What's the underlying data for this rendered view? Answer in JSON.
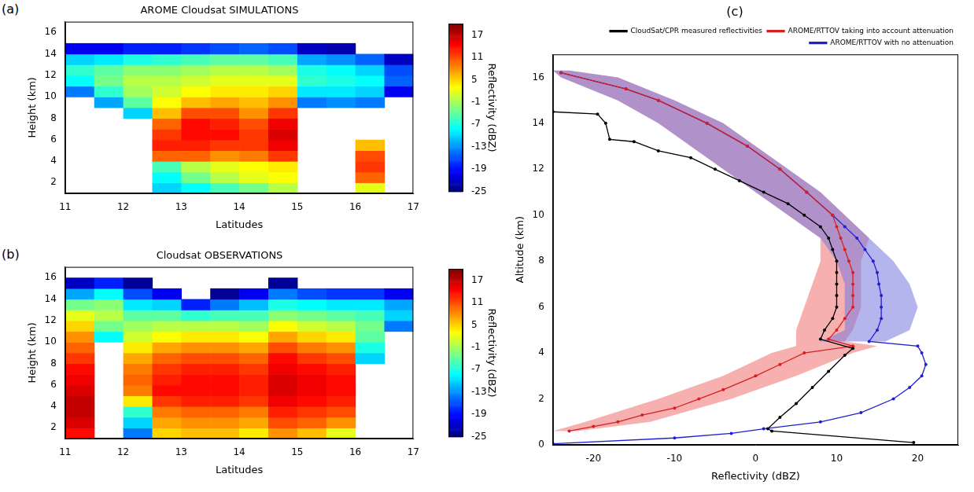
{
  "chart_data": [
    {
      "type": "heatmap",
      "panel": "(a)",
      "title": "AROME Cloudsat SIMULATIONS",
      "x_label": "Latitudes",
      "y_label": "Height (km)",
      "xlim": [
        11,
        17
      ],
      "xticks": [
        11,
        12,
        13,
        14,
        15,
        16,
        17
      ],
      "ylim": [
        1,
        17
      ],
      "yticks": [
        2,
        4,
        6,
        8,
        10,
        12,
        14,
        16
      ],
      "grid": false,
      "x_bins": [
        11,
        11.5,
        12,
        12.5,
        13,
        13.5,
        14,
        14.5,
        15,
        15.5,
        16,
        16.5,
        17
      ],
      "y_bins": [
        1,
        2,
        3,
        4,
        5,
        6,
        7,
        8,
        9,
        10,
        11,
        12,
        13,
        14,
        15,
        16
      ],
      "cells": [
        [
          null,
          null,
          null,
          null,
          null,
          null,
          null,
          null,
          null,
          -14,
          -8,
          -6,
          -10,
          -20,
          null
        ],
        [
          null,
          null,
          null,
          null,
          null,
          null,
          null,
          null,
          -12,
          -6,
          -3,
          -4,
          -9,
          -20,
          null
        ],
        [
          null,
          null,
          null,
          null,
          null,
          null,
          null,
          -10,
          -4,
          -1,
          0,
          -2,
          -7,
          -18,
          null
        ],
        [
          -10,
          -8,
          -5,
          10,
          13,
          12,
          10,
          6,
          3,
          1,
          0,
          -2,
          -6,
          -18,
          null
        ],
        [
          -8,
          -3,
          0,
          10,
          13,
          14,
          14,
          11,
          6,
          3,
          1,
          -1,
          -5,
          -17,
          null
        ],
        [
          -5,
          0,
          2,
          8,
          12,
          14,
          13,
          11,
          7,
          4,
          2,
          0,
          -4,
          -16,
          null
        ],
        [
          -3,
          2,
          3,
          9,
          12,
          12,
          11,
          8,
          6,
          4,
          2,
          0,
          -4,
          -15,
          null
        ],
        [
          0,
          3,
          4,
          12,
          15,
          16,
          15,
          12,
          8,
          5,
          2,
          -1,
          -5,
          -16,
          null
        ],
        [
          null,
          null,
          null,
          null,
          null,
          null,
          null,
          null,
          -14,
          -9,
          -6,
          -7,
          -12,
          -22,
          null
        ],
        [
          null,
          null,
          null,
          null,
          null,
          null,
          null,
          null,
          -13,
          -9,
          -7,
          -8,
          -13,
          -23,
          null
        ],
        [
          2,
          10,
          12,
          11,
          6,
          null,
          null,
          null,
          -14,
          -10,
          -8,
          -10,
          -15,
          null,
          null
        ],
        [
          null,
          null,
          null,
          null,
          null,
          null,
          null,
          null,
          null,
          -20,
          -15,
          -16,
          -22,
          null,
          null
        ]
      ],
      "colorbar": {
        "label": "Reflectivity (dBZ)",
        "lim": [
          -25,
          20
        ],
        "ticks": [
          17,
          11,
          5,
          -1,
          -7,
          -13,
          -19,
          -25
        ]
      }
    },
    {
      "type": "heatmap",
      "panel": "(b)",
      "title": "Cloudsat OBSERVATIONS",
      "x_label": "Latitudes",
      "y_label": "Height (km)",
      "xlim": [
        11,
        17
      ],
      "xticks": [
        11,
        12,
        13,
        14,
        15,
        16,
        17
      ],
      "ylim": [
        1,
        17
      ],
      "yticks": [
        2,
        4,
        6,
        8,
        10,
        12,
        14,
        16
      ],
      "grid": false,
      "x_bins": [
        11,
        11.5,
        12,
        12.5,
        13,
        13.5,
        14,
        14.5,
        15,
        15.5,
        16,
        16.5,
        17
      ],
      "y_bins": [
        1,
        2,
        3,
        4,
        5,
        6,
        7,
        8,
        9,
        10,
        11,
        12,
        13,
        14,
        15,
        16
      ],
      "cells": [
        [
          14,
          16,
          17,
          17,
          16,
          15,
          14,
          12,
          10,
          8,
          5,
          2,
          -3,
          -12,
          -22
        ],
        [
          null,
          null,
          null,
          null,
          null,
          null,
          null,
          null,
          null,
          -8,
          -3,
          0,
          -2,
          -8,
          -18
        ],
        [
          -14,
          -10,
          -6,
          4,
          9,
          10,
          9,
          7,
          4,
          1,
          -1,
          -4,
          -9,
          -16,
          -24
        ],
        [
          5,
          7,
          9,
          12,
          14,
          13,
          12,
          10,
          7,
          3,
          0,
          -4,
          -10,
          -20,
          null
        ],
        [
          6,
          8,
          10,
          13,
          14,
          14,
          13,
          11,
          8,
          4,
          0,
          -6,
          -18,
          null,
          null
        ],
        [
          6,
          8,
          10,
          13,
          14,
          14,
          13,
          11,
          8,
          4,
          0,
          -5,
          -14,
          -24,
          null
        ],
        [
          4,
          7,
          9,
          12,
          13,
          13,
          12,
          10,
          7,
          3,
          -1,
          -5,
          -11,
          -20,
          null
        ],
        [
          8,
          11,
          13,
          15,
          16,
          16,
          15,
          14,
          11,
          7,
          3,
          -2,
          -7,
          -14,
          -24
        ],
        [
          6,
          10,
          12,
          14,
          15,
          15,
          14,
          12,
          9,
          5,
          1,
          -3,
          -8,
          -16,
          null
        ],
        [
          2,
          8,
          11,
          13,
          14,
          14,
          13,
          11,
          8,
          4,
          0,
          -4,
          -9,
          -17,
          null
        ],
        [
          null,
          null,
          null,
          null,
          null,
          null,
          null,
          -10,
          -7,
          -4,
          -3,
          -5,
          -9,
          -17,
          null
        ],
        [
          null,
          null,
          null,
          null,
          null,
          null,
          null,
          null,
          null,
          null,
          -14,
          -10,
          -12,
          -20,
          null
        ]
      ],
      "colorbar": {
        "label": "Reflectivity (dBZ)",
        "lim": [
          -25,
          20
        ],
        "ticks": [
          17,
          11,
          5,
          -1,
          -7,
          -13,
          -19,
          -25
        ]
      }
    },
    {
      "type": "line",
      "panel": "(c)",
      "x_label": "Reflectivity (dBZ)",
      "y_label": "Altitude (km)",
      "xlim": [
        -25,
        25
      ],
      "xticks": [
        -20,
        -10,
        0,
        10,
        20
      ],
      "ylim": [
        0,
        17
      ],
      "yticks": [
        0,
        2,
        4,
        6,
        8,
        10,
        12,
        14,
        16
      ],
      "grid": false,
      "legend": "top right",
      "series": [
        {
          "name": "CloudSat/CPR measured reflectivities",
          "color": "#000000",
          "marker": "circle",
          "line_style": "solid",
          "x": [
            19.5,
            2,
            1.5,
            3,
            5,
            7,
            9,
            11,
            12,
            8,
            8.5,
            9.5,
            10,
            10,
            10,
            10,
            10,
            9.5,
            9,
            8,
            6,
            4,
            1,
            -2,
            -5,
            -8,
            -12,
            -15,
            -18,
            -18.5,
            -19.5,
            -25
          ],
          "y": [
            0.1,
            0.6,
            0.7,
            1.2,
            1.8,
            2.5,
            3.2,
            3.9,
            4.2,
            4.6,
            5,
            5.5,
            6,
            6.5,
            7,
            7.5,
            8,
            8.5,
            9,
            9.5,
            10,
            10.5,
            11,
            11.5,
            12,
            12.5,
            12.8,
            13.2,
            13.3,
            14,
            14.4,
            14.5
          ]
        },
        {
          "name": "AROME/RTTOV taking into account attenuation",
          "color": "#d62020",
          "marker": "circle",
          "line_style": "solid",
          "x": [
            -23,
            -20,
            -17,
            -14,
            -10,
            -7,
            -4,
            0,
            3,
            6,
            12,
            9,
            10,
            11,
            12,
            12,
            12,
            12,
            11.5,
            11,
            10.5,
            10,
            9.5,
            6.3,
            3,
            -1,
            -6,
            -12,
            -16,
            -24
          ],
          "y": [
            0.6,
            0.8,
            1.0,
            1.3,
            1.6,
            2.0,
            2.4,
            3.0,
            3.5,
            4.0,
            4.3,
            4.6,
            5.0,
            5.5,
            6.0,
            6.5,
            7.0,
            7.5,
            8.0,
            8.5,
            9.0,
            9.5,
            10,
            11,
            12,
            13,
            14,
            15,
            15.5,
            16.2
          ],
          "band": {
            "color": "#f07070",
            "y": [
              0.6,
              1,
              2,
              3,
              4,
              4.3,
              4.5,
              5,
              6,
              7,
              8,
              9,
              10,
              11,
              12,
              13,
              14,
              15,
              16,
              16.3
            ],
            "low": [
              -25,
              -21,
              -12,
              -4,
              2,
              5,
              5,
              5,
              6,
              7,
              8,
              8,
              4,
              0,
              -4,
              -8,
              -12,
              -17,
              -24,
              -25
            ],
            "high": [
              -22,
              -13,
              -3,
              5,
              12,
              15,
              11,
              12,
              13,
              13,
              13,
              14,
              11,
              8,
              4,
              0,
              -4,
              -10,
              -17,
              -23
            ]
          }
        },
        {
          "name": "AROME/RTTOV with no attenuation",
          "color": "#2020d0",
          "marker": "circle",
          "line_style": "solid",
          "x": [
            -25,
            -10,
            -3,
            1,
            8,
            13,
            17,
            19,
            20.5,
            21,
            20.5,
            20,
            14,
            15,
            15.5,
            15.5,
            15.5,
            15.2,
            15,
            14.5,
            13.5,
            12.5,
            11,
            9.5,
            6.3,
            3,
            -1,
            -6,
            -12,
            -16,
            -24
          ],
          "y": [
            0.05,
            0.3,
            0.5,
            0.7,
            1.0,
            1.4,
            2.0,
            2.5,
            3.0,
            3.5,
            4.0,
            4.3,
            4.5,
            5.0,
            5.5,
            6.0,
            6.5,
            7.0,
            7.5,
            8.0,
            8.5,
            9.0,
            9.5,
            10,
            11,
            12,
            13,
            14,
            15,
            15.5,
            16.2
          ],
          "band": {
            "color": "#7878e0",
            "y": [
              4.5,
              5,
              6,
              7,
              8,
              9,
              10,
              11,
              12,
              13,
              14,
              15,
              16,
              16.3
            ],
            "low": [
              8,
              11,
              11,
              11,
              10,
              8,
              4,
              0,
              -4,
              -8,
              -12,
              -17,
              -24,
              -25
            ],
            "high": [
              16,
              19,
              20,
              19,
              17,
              14,
              11,
              8,
              4,
              0,
              -4,
              -10,
              -17,
              -23
            ]
          }
        }
      ]
    }
  ]
}
